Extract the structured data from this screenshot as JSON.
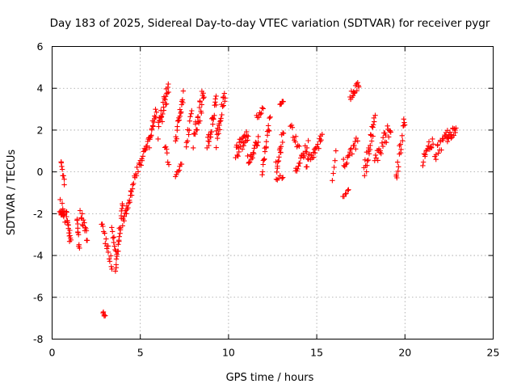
{
  "chart_data": {
    "type": "scatter",
    "title": "Day 183 of 2025, Sidereal Day-to-day VTEC variation (SDTVAR) for receiver pygr",
    "xlabel": "GPS time / hours",
    "ylabel": "SDTVAR / TECUs",
    "xlim": [
      0,
      25
    ],
    "ylim": [
      -8,
      6
    ],
    "xticks": [
      0,
      5,
      10,
      15,
      20,
      25
    ],
    "yticks": [
      -8,
      -6,
      -4,
      -2,
      0,
      2,
      4,
      6
    ],
    "xtick_labels": [
      "0",
      "5",
      "10",
      "15",
      "20",
      "25"
    ],
    "ytick_labels": [
      "-8",
      "-6",
      "-4",
      "-2",
      "0",
      "2",
      "4",
      "6"
    ],
    "grid": true,
    "marker": "+",
    "series": [
      {
        "name": "SDTVAR",
        "color": "#ff0000",
        "segments": [
          {
            "x": [
              0.45,
              0.72
            ],
            "y": [
              -1.6,
              -2.1
            ],
            "spread": 0.7,
            "n": 18
          },
          {
            "x": [
              0.5,
              0.7
            ],
            "y": [
              0.5,
              -0.6
            ],
            "spread": 0.25,
            "n": 8
          },
          {
            "x": [
              0.8,
              1.05
            ],
            "y": [
              -1.8,
              -3.5
            ],
            "spread": 0.5,
            "n": 16
          },
          {
            "x": [
              1.4,
              1.55
            ],
            "y": [
              -2.2,
              -3.7
            ],
            "spread": 0.4,
            "n": 10
          },
          {
            "x": [
              1.6,
              2.0
            ],
            "y": [
              -1.9,
              -3.2
            ],
            "spread": 0.45,
            "n": 14
          },
          {
            "x": [
              2.8,
              3.4
            ],
            "y": [
              -2.6,
              -4.5
            ],
            "spread": 0.5,
            "n": 16
          },
          {
            "x": [
              2.9,
              3.0
            ],
            "y": [
              -6.7,
              -6.9
            ],
            "spread": 0.1,
            "n": 5
          },
          {
            "x": [
              3.4,
              3.6
            ],
            "y": [
              -2.8,
              -3.8
            ],
            "spread": 0.4,
            "n": 8
          },
          {
            "x": [
              3.6,
              4.0
            ],
            "y": [
              -4.8,
              -1.6
            ],
            "spread": 0.6,
            "n": 22
          },
          {
            "x": [
              4.0,
              4.5
            ],
            "y": [
              -2.4,
              -1.0
            ],
            "spread": 0.4,
            "n": 16
          },
          {
            "x": [
              4.5,
              4.95
            ],
            "y": [
              -0.8,
              0.4
            ],
            "spread": 0.35,
            "n": 12
          },
          {
            "x": [
              5.0,
              5.5
            ],
            "y": [
              0.4,
              1.6
            ],
            "spread": 0.4,
            "n": 14
          },
          {
            "x": [
              5.5,
              5.9
            ],
            "y": [
              1.2,
              3.0
            ],
            "spread": 0.6,
            "n": 16
          },
          {
            "x": [
              6.0,
              6.6
            ],
            "y": [
              2.0,
              4.0
            ],
            "spread": 0.9,
            "n": 28
          },
          {
            "x": [
              6.4,
              6.6
            ],
            "y": [
              1.3,
              0.4
            ],
            "spread": 0.3,
            "n": 6
          },
          {
            "x": [
              7.0,
              7.45
            ],
            "y": [
              1.6,
              3.8
            ],
            "spread": 0.8,
            "n": 18
          },
          {
            "x": [
              7.0,
              7.35
            ],
            "y": [
              -0.2,
              0.4
            ],
            "spread": 0.2,
            "n": 8
          },
          {
            "x": [
              7.6,
              7.9
            ],
            "y": [
              1.4,
              2.8
            ],
            "spread": 0.5,
            "n": 10
          },
          {
            "x": [
              8.0,
              8.6
            ],
            "y": [
              1.5,
              3.8
            ],
            "spread": 0.9,
            "n": 26
          },
          {
            "x": [
              8.8,
              9.3
            ],
            "y": [
              1.2,
              3.6
            ],
            "spread": 0.9,
            "n": 22
          },
          {
            "x": [
              9.3,
              9.8
            ],
            "y": [
              1.5,
              3.7
            ],
            "spread": 0.9,
            "n": 22
          },
          {
            "x": [
              10.4,
              11.1
            ],
            "y": [
              0.9,
              1.8
            ],
            "spread": 0.7,
            "n": 26
          },
          {
            "x": [
              11.1,
              11.7
            ],
            "y": [
              0.6,
              1.4
            ],
            "spread": 0.6,
            "n": 18
          },
          {
            "x": [
              11.6,
              11.95
            ],
            "y": [
              2.6,
              3.1
            ],
            "spread": 0.3,
            "n": 8
          },
          {
            "x": [
              11.9,
              12.35
            ],
            "y": [
              0.2,
              2.6
            ],
            "spread": 0.8,
            "n": 18
          },
          {
            "x": [
              12.7,
              13.1
            ],
            "y": [
              0.2,
              1.8
            ],
            "spread": 0.7,
            "n": 16
          },
          {
            "x": [
              12.7,
              13.1
            ],
            "y": [
              -0.4,
              -0.2
            ],
            "spread": 0.2,
            "n": 6
          },
          {
            "x": [
              12.9,
              13.1
            ],
            "y": [
              3.2,
              3.4
            ],
            "spread": 0.15,
            "n": 6
          },
          {
            "x": [
              13.5,
              14.0
            ],
            "y": [
              2.2,
              1.2
            ],
            "spread": 0.5,
            "n": 10
          },
          {
            "x": [
              13.8,
              14.5
            ],
            "y": [
              0.0,
              1.3
            ],
            "spread": 0.6,
            "n": 18
          },
          {
            "x": [
              14.4,
              15.3
            ],
            "y": [
              0.4,
              1.6
            ],
            "spread": 0.6,
            "n": 24
          },
          {
            "x": [
              15.9,
              16.1
            ],
            "y": [
              -0.5,
              1.0
            ],
            "spread": 0.5,
            "n": 5
          },
          {
            "x": [
              16.5,
              16.8
            ],
            "y": [
              -1.2,
              -0.9
            ],
            "spread": 0.2,
            "n": 6
          },
          {
            "x": [
              16.5,
              17.3
            ],
            "y": [
              0.4,
              1.4
            ],
            "spread": 0.6,
            "n": 18
          },
          {
            "x": [
              16.9,
              17.4
            ],
            "y": [
              3.6,
              4.2
            ],
            "spread": 0.4,
            "n": 14
          },
          {
            "x": [
              17.7,
              18.3
            ],
            "y": [
              0.0,
              2.4
            ],
            "spread": 0.9,
            "n": 24
          },
          {
            "x": [
              18.3,
              19.2
            ],
            "y": [
              0.6,
              2.2
            ],
            "spread": 0.8,
            "n": 24
          },
          {
            "x": [
              19.5,
              20.0
            ],
            "y": [
              -0.2,
              2.4
            ],
            "spread": 0.9,
            "n": 18
          },
          {
            "x": [
              21.0,
              21.6
            ],
            "y": [
              0.6,
              1.6
            ],
            "spread": 0.6,
            "n": 16
          },
          {
            "x": [
              21.7,
              22.4
            ],
            "y": [
              0.8,
              1.8
            ],
            "spread": 0.6,
            "n": 18
          },
          {
            "x": [
              22.4,
              22.9
            ],
            "y": [
              1.4,
              2.2
            ],
            "spread": 0.5,
            "n": 16
          }
        ]
      }
    ]
  }
}
